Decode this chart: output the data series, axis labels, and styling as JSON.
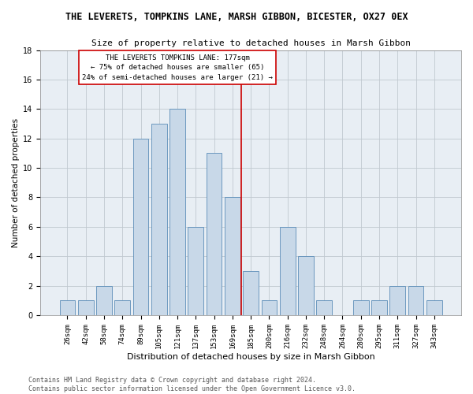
{
  "title": "THE LEVERETS, TOMPKINS LANE, MARSH GIBBON, BICESTER, OX27 0EX",
  "subtitle": "Size of property relative to detached houses in Marsh Gibbon",
  "xlabel": "Distribution of detached houses by size in Marsh Gibbon",
  "ylabel": "Number of detached properties",
  "categories": [
    "26sqm",
    "42sqm",
    "58sqm",
    "74sqm",
    "89sqm",
    "105sqm",
    "121sqm",
    "137sqm",
    "153sqm",
    "169sqm",
    "185sqm",
    "200sqm",
    "216sqm",
    "232sqm",
    "248sqm",
    "264sqm",
    "280sqm",
    "295sqm",
    "311sqm",
    "327sqm",
    "343sqm"
  ],
  "values": [
    1,
    1,
    2,
    1,
    12,
    13,
    14,
    6,
    11,
    8,
    3,
    1,
    6,
    4,
    1,
    0,
    1,
    1,
    2,
    2,
    1
  ],
  "bar_color": "#c8d8e8",
  "bar_edge_color": "#5b8db8",
  "vline_color": "#cc0000",
  "annotation_box_edge_color": "#cc0000",
  "annotation_line1": "THE LEVERETS TOMPKINS LANE: 177sqm",
  "annotation_line2": "← 75% of detached houses are smaller (65)",
  "annotation_line3": "24% of semi-detached houses are larger (21) →",
  "footer_line1": "Contains HM Land Registry data © Crown copyright and database right 2024.",
  "footer_line2": "Contains public sector information licensed under the Open Government Licence v3.0.",
  "ylim": [
    0,
    18
  ],
  "background_color": "#e8eef4",
  "grid_color": "#c0c8d0",
  "title_fontsize": 8.5,
  "subtitle_fontsize": 8,
  "axis_label_fontsize": 7.5,
  "tick_fontsize": 6.5,
  "annotation_fontsize": 6.5,
  "footer_fontsize": 6
}
